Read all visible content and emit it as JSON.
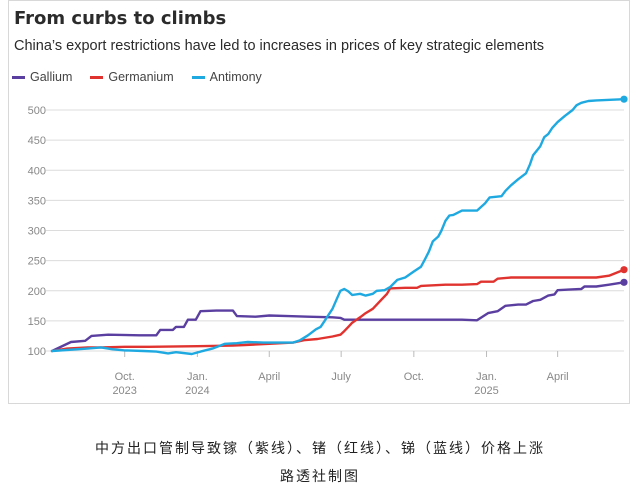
{
  "chart_data": {
    "type": "line",
    "title": "From curbs to climbs",
    "subtitle": "China’s export restrictions have led to increases in prices of key strategic elements",
    "ylim": [
      100,
      520
    ],
    "yticks": [
      100,
      150,
      200,
      250,
      300,
      350,
      400,
      450,
      500
    ],
    "grid": "horizontal",
    "legend_position": "top-left",
    "x_range": [
      "2023-07-01",
      "2025-06-24"
    ],
    "xticks": [
      {
        "date": "2023-10-01",
        "line1": "Oct.",
        "line2": "2023"
      },
      {
        "date": "2024-01-01",
        "line1": "Jan.",
        "line2": "2024"
      },
      {
        "date": "2024-04-01",
        "line1": "April",
        "line2": ""
      },
      {
        "date": "2024-07-01",
        "line1": "July",
        "line2": ""
      },
      {
        "date": "2024-10-01",
        "line1": "Oct.",
        "line2": ""
      },
      {
        "date": "2025-01-01",
        "line1": "Jan.",
        "line2": "2025"
      },
      {
        "date": "2025-04-01",
        "line1": "April",
        "line2": ""
      }
    ],
    "series": [
      {
        "name": "Gallium",
        "color": "#5b3fa0",
        "points": [
          [
            "2023-07-01",
            100
          ],
          [
            "2023-07-25",
            115
          ],
          [
            "2023-08-12",
            117
          ],
          [
            "2023-08-20",
            125
          ],
          [
            "2023-09-10",
            127
          ],
          [
            "2023-10-20",
            126
          ],
          [
            "2023-11-10",
            126
          ],
          [
            "2023-11-15",
            135
          ],
          [
            "2023-12-01",
            135
          ],
          [
            "2023-12-05",
            140
          ],
          [
            "2023-12-15",
            140
          ],
          [
            "2023-12-20",
            152
          ],
          [
            "2023-12-30",
            152
          ],
          [
            "2024-01-05",
            166
          ],
          [
            "2024-01-25",
            167
          ],
          [
            "2024-02-15",
            167
          ],
          [
            "2024-02-20",
            158
          ],
          [
            "2024-03-15",
            157
          ],
          [
            "2024-04-01",
            159
          ],
          [
            "2024-04-25",
            158
          ],
          [
            "2024-05-20",
            157
          ],
          [
            "2024-06-20",
            156
          ],
          [
            "2024-06-30",
            155
          ],
          [
            "2024-07-05",
            152
          ],
          [
            "2024-08-15",
            152
          ],
          [
            "2024-10-15",
            152
          ],
          [
            "2024-11-10",
            152
          ],
          [
            "2024-12-01",
            152
          ],
          [
            "2024-12-20",
            151
          ],
          [
            "2024-12-28",
            158
          ],
          [
            "2025-01-03",
            163
          ],
          [
            "2025-01-15",
            166
          ],
          [
            "2025-01-25",
            175
          ],
          [
            "2025-02-10",
            177
          ],
          [
            "2025-02-20",
            177
          ],
          [
            "2025-03-01",
            183
          ],
          [
            "2025-03-10",
            185
          ],
          [
            "2025-03-20",
            192
          ],
          [
            "2025-03-28",
            194
          ],
          [
            "2025-04-01",
            201
          ],
          [
            "2025-04-15",
            202
          ],
          [
            "2025-05-01",
            203
          ],
          [
            "2025-05-05",
            207
          ],
          [
            "2025-05-20",
            207
          ],
          [
            "2025-06-05",
            210
          ],
          [
            "2025-06-24",
            214
          ]
        ]
      },
      {
        "name": "Germanium",
        "color": "#e0332f",
        "points": [
          [
            "2023-07-01",
            100
          ],
          [
            "2023-07-20",
            104
          ],
          [
            "2023-08-15",
            106
          ],
          [
            "2023-09-01",
            106
          ],
          [
            "2023-10-01",
            107
          ],
          [
            "2023-11-01",
            107
          ],
          [
            "2024-01-01",
            108
          ],
          [
            "2024-02-15",
            109
          ],
          [
            "2024-03-01",
            110
          ],
          [
            "2024-04-01",
            112
          ],
          [
            "2024-05-01",
            114
          ],
          [
            "2024-05-15",
            118
          ],
          [
            "2024-06-01",
            120
          ],
          [
            "2024-06-20",
            124
          ],
          [
            "2024-06-30",
            127
          ],
          [
            "2024-07-05",
            133
          ],
          [
            "2024-07-10",
            140
          ],
          [
            "2024-07-15",
            147
          ],
          [
            "2024-07-25",
            156
          ],
          [
            "2024-08-01",
            163
          ],
          [
            "2024-08-10",
            170
          ],
          [
            "2024-08-20",
            184
          ],
          [
            "2024-08-28",
            195
          ],
          [
            "2024-09-01",
            204
          ],
          [
            "2024-09-20",
            205
          ],
          [
            "2024-10-05",
            205
          ],
          [
            "2024-10-10",
            208
          ],
          [
            "2024-11-10",
            210
          ],
          [
            "2024-12-01",
            210
          ],
          [
            "2024-12-20",
            211
          ],
          [
            "2024-12-25",
            215
          ],
          [
            "2025-01-10",
            215
          ],
          [
            "2025-01-15",
            220
          ],
          [
            "2025-02-01",
            222
          ],
          [
            "2025-03-01",
            222
          ],
          [
            "2025-04-01",
            222
          ],
          [
            "2025-05-01",
            222
          ],
          [
            "2025-05-20",
            222
          ],
          [
            "2025-06-05",
            225
          ],
          [
            "2025-06-24",
            235
          ]
        ]
      },
      {
        "name": "Antimony",
        "color": "#1fa9e1",
        "points": [
          [
            "2023-07-01",
            100
          ],
          [
            "2023-08-15",
            104
          ],
          [
            "2023-09-01",
            106
          ],
          [
            "2023-09-15",
            103
          ],
          [
            "2023-10-01",
            101
          ],
          [
            "2023-10-25",
            100
          ],
          [
            "2023-11-10",
            99
          ],
          [
            "2023-11-25",
            96
          ],
          [
            "2023-12-05",
            98
          ],
          [
            "2023-12-25",
            95
          ],
          [
            "2024-01-05",
            99
          ],
          [
            "2024-01-20",
            104
          ],
          [
            "2024-02-05",
            112
          ],
          [
            "2024-02-20",
            113
          ],
          [
            "2024-03-05",
            115
          ],
          [
            "2024-03-25",
            114
          ],
          [
            "2024-04-15",
            114
          ],
          [
            "2024-05-01",
            114
          ],
          [
            "2024-05-10",
            118
          ],
          [
            "2024-05-20",
            126
          ],
          [
            "2024-05-30",
            136
          ],
          [
            "2024-06-05",
            140
          ],
          [
            "2024-06-10",
            150
          ],
          [
            "2024-06-15",
            160
          ],
          [
            "2024-06-20",
            170
          ],
          [
            "2024-06-25",
            185
          ],
          [
            "2024-06-30",
            200
          ],
          [
            "2024-07-05",
            203
          ],
          [
            "2024-07-10",
            199
          ],
          [
            "2024-07-15",
            193
          ],
          [
            "2024-07-25",
            195
          ],
          [
            "2024-08-01",
            192
          ],
          [
            "2024-08-10",
            195
          ],
          [
            "2024-08-15",
            200
          ],
          [
            "2024-08-25",
            201
          ],
          [
            "2024-09-01",
            206
          ],
          [
            "2024-09-10",
            218
          ],
          [
            "2024-09-20",
            222
          ],
          [
            "2024-10-01",
            232
          ],
          [
            "2024-10-10",
            240
          ],
          [
            "2024-10-15",
            252
          ],
          [
            "2024-10-20",
            265
          ],
          [
            "2024-10-25",
            282
          ],
          [
            "2024-11-01",
            290
          ],
          [
            "2024-11-05",
            300
          ],
          [
            "2024-11-10",
            316
          ],
          [
            "2024-11-15",
            325
          ],
          [
            "2024-11-20",
            326
          ],
          [
            "2024-12-01",
            333
          ],
          [
            "2024-12-20",
            333
          ],
          [
            "2024-12-30",
            345
          ],
          [
            "2025-01-05",
            355
          ],
          [
            "2025-01-20",
            357
          ],
          [
            "2025-01-25",
            366
          ],
          [
            "2025-02-01",
            375
          ],
          [
            "2025-02-10",
            385
          ],
          [
            "2025-02-20",
            395
          ],
          [
            "2025-02-25",
            410
          ],
          [
            "2025-03-01",
            425
          ],
          [
            "2025-03-10",
            440
          ],
          [
            "2025-03-15",
            455
          ],
          [
            "2025-03-20",
            460
          ],
          [
            "2025-03-25",
            470
          ],
          [
            "2025-04-01",
            480
          ],
          [
            "2025-04-10",
            490
          ],
          [
            "2025-04-20",
            500
          ],
          [
            "2025-04-25",
            508
          ],
          [
            "2025-05-01",
            512
          ],
          [
            "2025-05-10",
            515
          ],
          [
            "2025-05-20",
            516
          ],
          [
            "2025-06-24",
            518
          ]
        ]
      }
    ]
  },
  "caption": {
    "line1": "中方出口管制导致镓（紫线）、锗（红线）、锑（蓝线）价格上涨",
    "line2": "路透社制图"
  }
}
